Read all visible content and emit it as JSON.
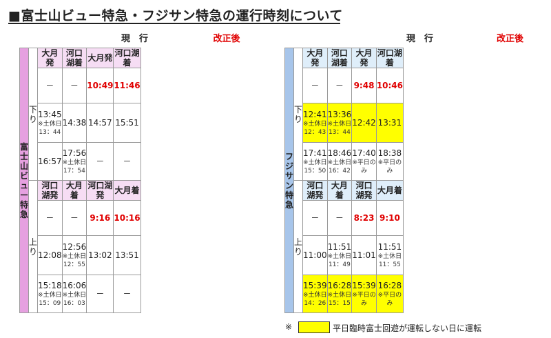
{
  "title": "■富士山ビュー特急・フジサン特急の運行時刻について",
  "colors": {
    "left_train_bg": "#e6a0e0",
    "right_train_bg": "#a7c5ea",
    "left_header_bg": "#f6ddf4",
    "right_header_bg": "#dfeefa",
    "highlight": "#ffff00",
    "red": "#e00000"
  },
  "tables": [
    {
      "train_name_lines": [
        "富士山",
        "ビュー",
        "特急"
      ],
      "current_label": "現　行",
      "revised_label": "改正後",
      "down": {
        "direction": [
          "下",
          "り"
        ],
        "columns": [
          "大月発",
          "河口湖着",
          "大月発",
          "河口湖着"
        ],
        "rows": [
          [
            {
              "time": "－"
            },
            {
              "time": "－"
            },
            {
              "time": "10:49",
              "red": true
            },
            {
              "time": "11:46",
              "red": true
            }
          ],
          [
            {
              "time": "13:45",
              "note1": "※土休日",
              "note2": "13：44"
            },
            {
              "time": "14:38"
            },
            {
              "time": "14:57"
            },
            {
              "time": "15:51"
            }
          ],
          [
            {
              "time": "16:57"
            },
            {
              "time": "17:56",
              "note1": "※土休日",
              "note2": "17：54"
            },
            {
              "time": "－"
            },
            {
              "time": "－"
            }
          ]
        ]
      },
      "up": {
        "direction": [
          "上",
          "り"
        ],
        "columns": [
          "河口湖発",
          "大月着",
          "河口湖発",
          "大月着"
        ],
        "rows": [
          [
            {
              "time": "－"
            },
            {
              "time": "－"
            },
            {
              "time": "9:16",
              "red": true
            },
            {
              "time": "10:16",
              "red": true
            }
          ],
          [
            {
              "time": "12:08"
            },
            {
              "time": "12:56",
              "note1": "※土休日",
              "note2": "12：55"
            },
            {
              "time": "13:02"
            },
            {
              "time": "13:51"
            }
          ],
          [
            {
              "time": "15:18",
              "note1": "※土休日",
              "note2": "15：09"
            },
            {
              "time": "16:06",
              "note1": "※土休日",
              "note2": "16：03"
            },
            {
              "time": "－"
            },
            {
              "time": "－"
            }
          ]
        ]
      }
    },
    {
      "train_name_lines": [
        "フジサン",
        "特急"
      ],
      "current_label": "現　行",
      "revised_label": "改正後",
      "down": {
        "direction": [
          "下",
          "り"
        ],
        "columns": [
          "大月発",
          "河口湖着",
          "大月発",
          "河口湖着"
        ],
        "rows": [
          [
            {
              "time": "－"
            },
            {
              "time": "－"
            },
            {
              "time": "9:48",
              "red": true
            },
            {
              "time": "10:46",
              "red": true
            }
          ],
          [
            {
              "time": "12:41",
              "note1": "※土休日",
              "note2": "12：43",
              "hl": true
            },
            {
              "time": "13:36",
              "note1": "※土休日",
              "note2": "13：44",
              "hl": true
            },
            {
              "time": "12:42",
              "hl": true
            },
            {
              "time": "13:31",
              "hl": true
            }
          ],
          [
            {
              "time": "17:41",
              "note1": "※土休日",
              "note2": "15：50"
            },
            {
              "time": "18:46",
              "note1": "※土休日",
              "note2": "16：42"
            },
            {
              "time": "17:40",
              "note1": "※平日のみ"
            },
            {
              "time": "18:38",
              "note1": "※平日のみ"
            }
          ]
        ]
      },
      "up": {
        "direction": [
          "上",
          "り"
        ],
        "columns": [
          "河口湖発",
          "大月着",
          "河口湖発",
          "大月着"
        ],
        "rows": [
          [
            {
              "time": "－"
            },
            {
              "time": "－"
            },
            {
              "time": "8:23",
              "red": true
            },
            {
              "time": "9:10",
              "red": true
            }
          ],
          [
            {
              "time": "11:00"
            },
            {
              "time": "11:51",
              "note1": "※土休日",
              "note2": "11：49"
            },
            {
              "time": "11:01"
            },
            {
              "time": "11:51",
              "note1": "※土休日",
              "note2": "11：55"
            }
          ],
          [
            {
              "time": "15:39",
              "note1": "※土休日",
              "note2": "14：26",
              "hl": true
            },
            {
              "time": "16:28",
              "note1": "※土休日",
              "note2": "15：15",
              "hl": true
            },
            {
              "time": "15:39",
              "note1": "※平日のみ",
              "hl": true
            },
            {
              "time": "16:28",
              "note1": "※平日のみ",
              "hl": true
            }
          ]
        ]
      }
    }
  ],
  "footnote": {
    "mark": "※",
    "text": "平日臨時富士回遊が運転しない日に運転"
  }
}
